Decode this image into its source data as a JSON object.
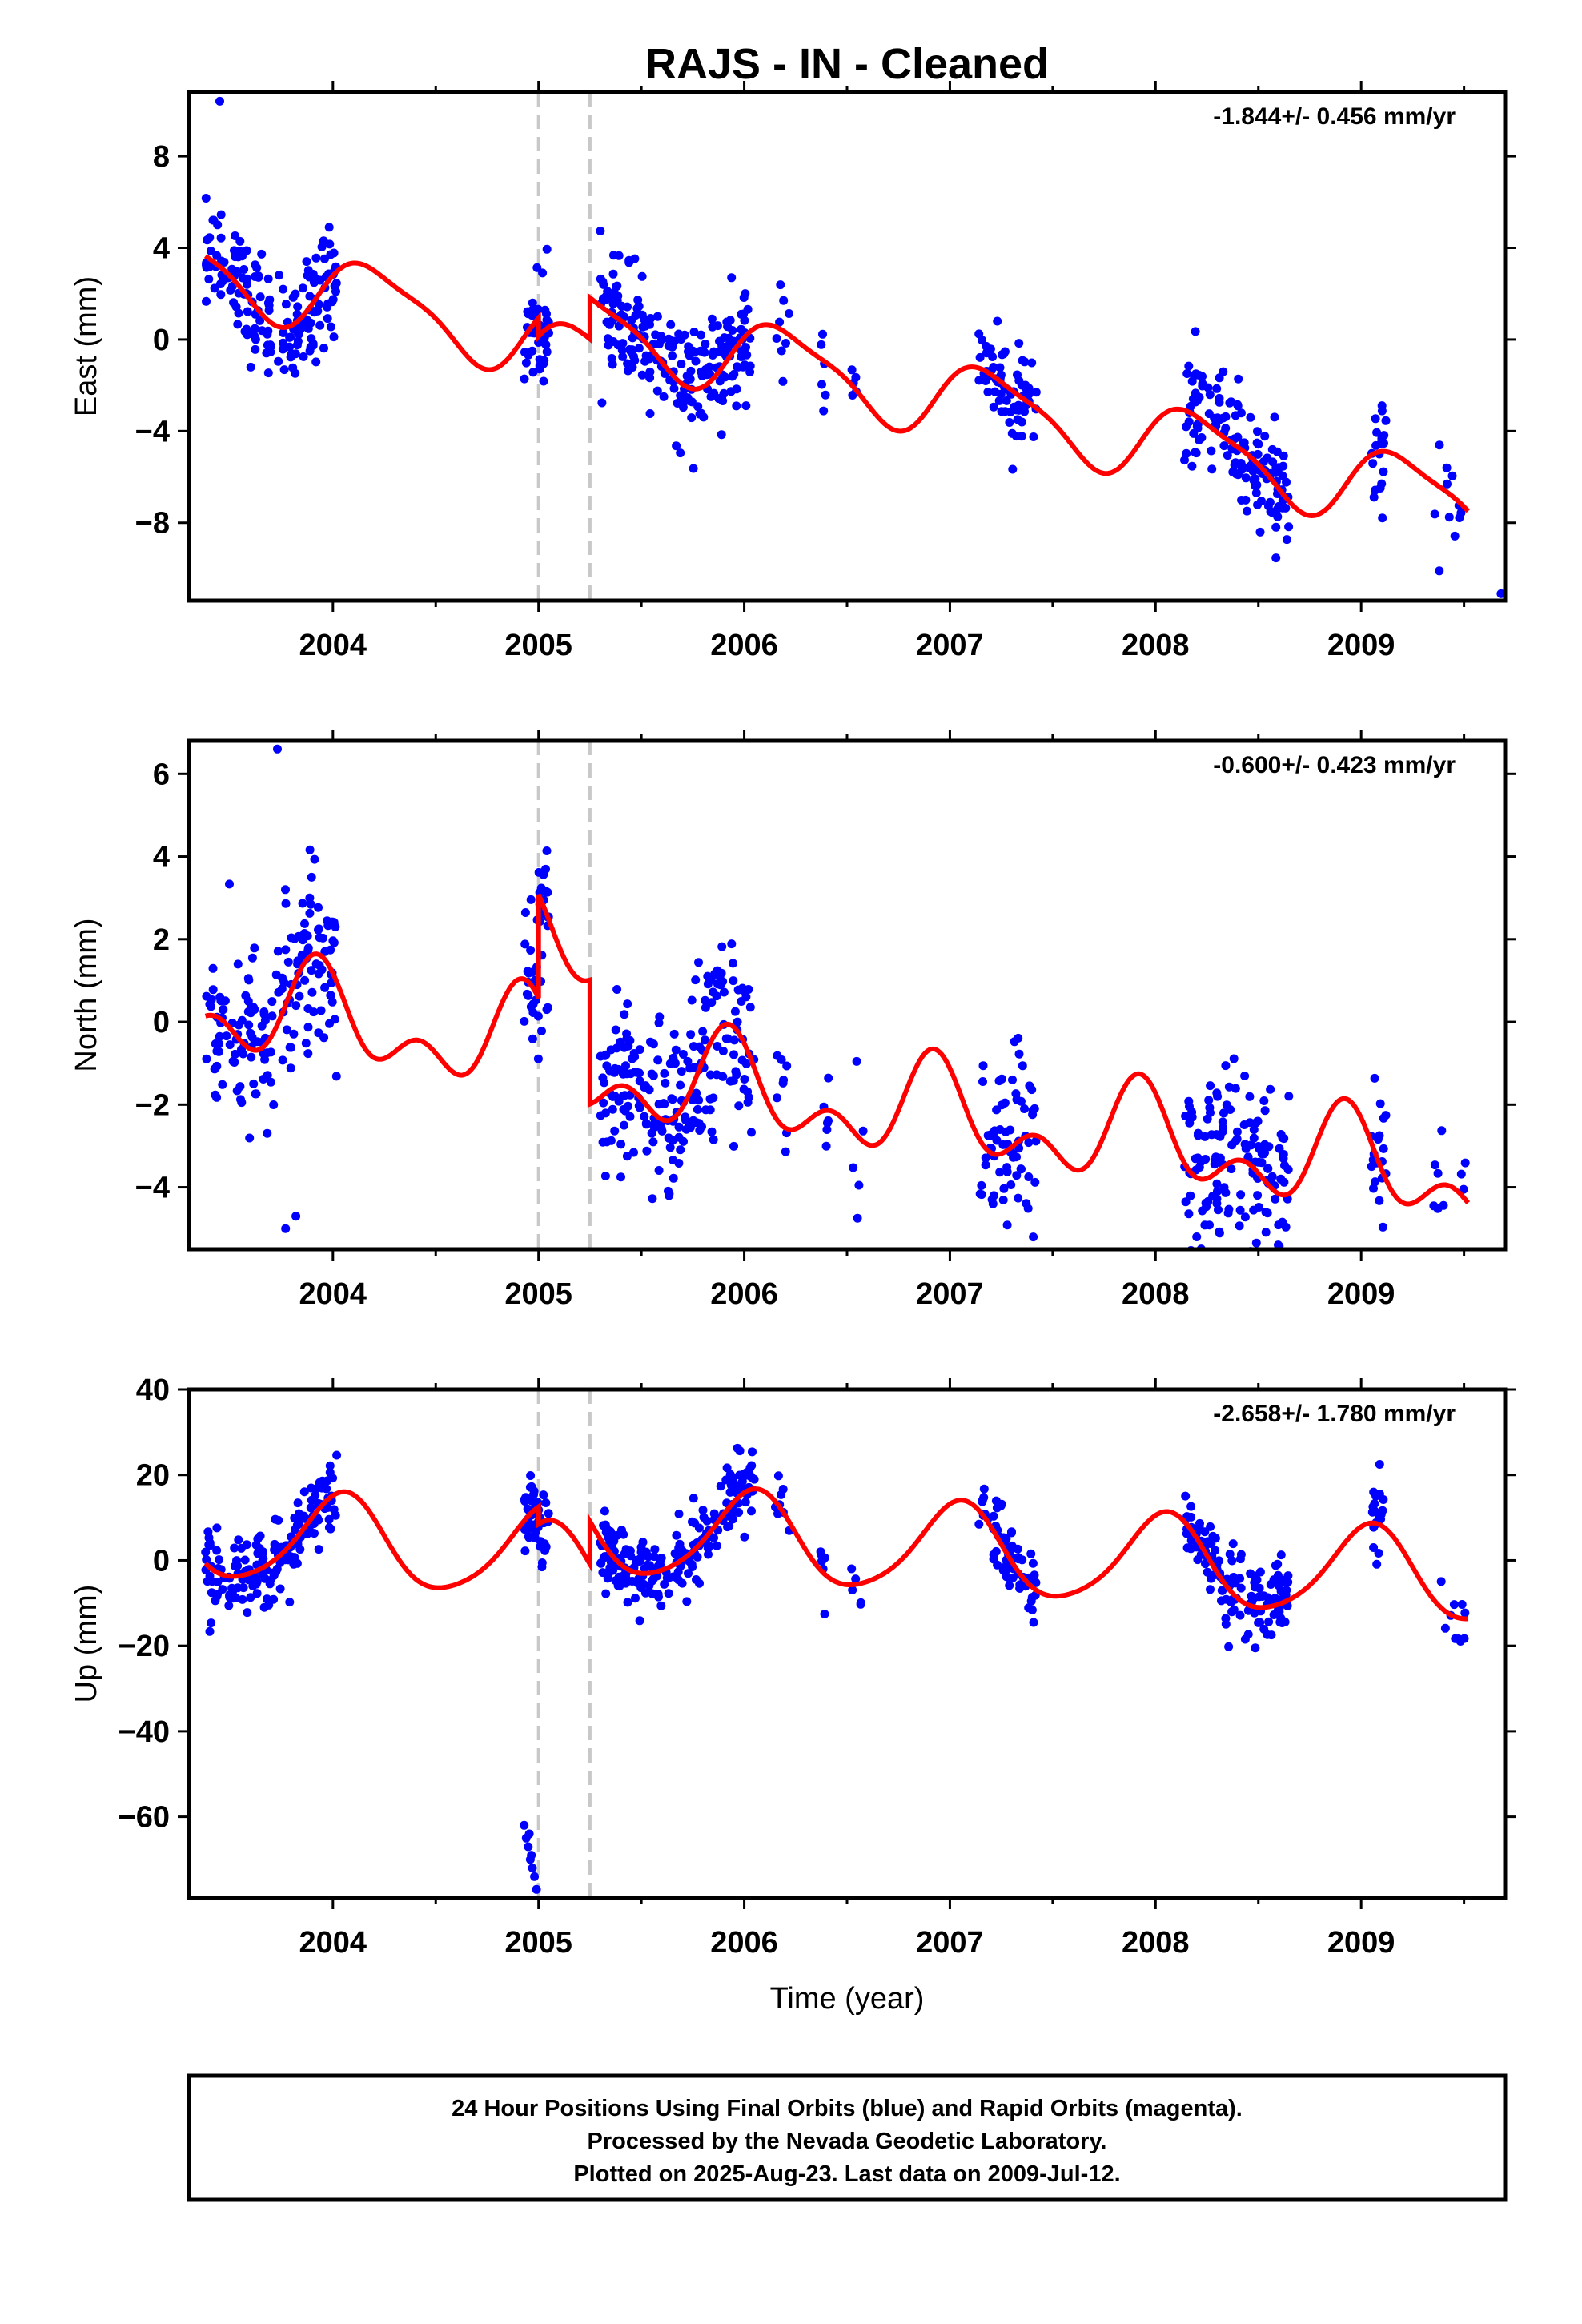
{
  "title": "RAJS  - IN - Cleaned",
  "xlabel": "Time (year)",
  "caption": [
    "24 Hour Positions Using Final Orbits (blue) and Rapid Orbits (magenta).",
    "Processed by the Nevada Geodetic Laboratory.",
    "Plotted on 2025-Aug-23. Last data on 2009-Jul-12."
  ],
  "colors": {
    "data": "#0000ff",
    "model": "#ff0000",
    "breaks": "#c8c8c8",
    "frame": "#000000"
  },
  "chart_data": [
    {
      "type": "scatter",
      "component": "east",
      "ylabel": "East (mm)",
      "rate": "-1.844+/- 0.456 mm/yr",
      "xlim": [
        2003.3,
        2009.7
      ],
      "ylim": [
        -11.4,
        10.8
      ],
      "yticks": [
        -8,
        -4,
        0,
        4,
        8
      ],
      "ytick_labels": [
        "−8",
        "−4",
        "0",
        "4",
        "8"
      ],
      "xticks": [
        2004,
        2005,
        2006,
        2007,
        2008,
        2009
      ],
      "breaks": [
        2005.0,
        2005.25
      ],
      "trend": {
        "rate": -1.844,
        "intercept_2003": 3.8,
        "annual_amp": 1.6,
        "annual_phase": 0.3,
        "semi_amp": 0.4,
        "semi_phase": 1.1
      },
      "data_segments": [
        {
          "start": 2003.38,
          "end": 2004.02,
          "n": 170
        },
        {
          "start": 2004.93,
          "end": 2005.05,
          "n": 45
        },
        {
          "start": 2005.3,
          "end": 2006.05,
          "n": 220
        },
        {
          "start": 2006.15,
          "end": 2006.22,
          "n": 8
        },
        {
          "start": 2006.37,
          "end": 2006.41,
          "n": 6
        },
        {
          "start": 2006.52,
          "end": 2006.58,
          "n": 5
        },
        {
          "start": 2007.14,
          "end": 2007.42,
          "n": 70
        },
        {
          "start": 2008.14,
          "end": 2008.65,
          "n": 150
        },
        {
          "start": 2009.05,
          "end": 2009.12,
          "n": 20
        },
        {
          "start": 2009.35,
          "end": 2009.52,
          "n": 10
        }
      ],
      "noise_sd": 1.2,
      "outliers": [
        [
          2003.45,
          10.4
        ],
        [
          2009.38,
          -10.1
        ],
        [
          2009.68,
          -11.1
        ]
      ]
    },
    {
      "type": "scatter",
      "component": "north",
      "ylabel": "North (mm)",
      "rate": "-0.600+/- 0.423 mm/yr",
      "xlim": [
        2003.3,
        2009.7
      ],
      "ylim": [
        -5.5,
        6.8
      ],
      "yticks": [
        -4,
        -2,
        0,
        2,
        4,
        6
      ],
      "ytick_labels": [
        "−4",
        "−2",
        "0",
        "2",
        "4",
        "6"
      ],
      "xticks": [
        2004,
        2005,
        2006,
        2007,
        2008,
        2009
      ],
      "breaks": [
        2005.0,
        2005.25
      ],
      "trend": {
        "rate": -0.6,
        "intercept_2003": 0.6,
        "annual_amp": 0.9,
        "annual_phase": 2.0,
        "semi_amp": 0.7,
        "semi_phase": 2.6
      },
      "data_segments": [
        {
          "start": 2003.38,
          "end": 2004.02,
          "n": 170
        },
        {
          "start": 2004.93,
          "end": 2005.05,
          "n": 45
        },
        {
          "start": 2005.3,
          "end": 2006.05,
          "n": 220
        },
        {
          "start": 2006.15,
          "end": 2006.22,
          "n": 8
        },
        {
          "start": 2006.37,
          "end": 2006.41,
          "n": 6
        },
        {
          "start": 2006.52,
          "end": 2006.58,
          "n": 5
        },
        {
          "start": 2007.14,
          "end": 2007.42,
          "n": 70
        },
        {
          "start": 2008.14,
          "end": 2008.65,
          "n": 150
        },
        {
          "start": 2009.05,
          "end": 2009.12,
          "n": 20
        },
        {
          "start": 2009.35,
          "end": 2009.52,
          "n": 10
        }
      ],
      "noise_sd": 1.1,
      "outliers": [
        [
          2003.73,
          6.6
        ],
        [
          2003.77,
          -5.0
        ],
        [
          2003.82,
          -4.7
        ],
        [
          2008.2,
          -5.2
        ]
      ]
    },
    {
      "type": "scatter",
      "component": "up",
      "ylabel": "Up (mm)",
      "rate": "-2.658+/- 1.780 mm/yr",
      "xlim": [
        2003.3,
        2009.7
      ],
      "ylim": [
        -79,
        40
      ],
      "yticks": [
        -60,
        -40,
        -20,
        0,
        20,
        40
      ],
      "ytick_labels": [
        "−60",
        "−40",
        "−20",
        "0",
        "20",
        "40"
      ],
      "xticks": [
        2004,
        2005,
        2006,
        2007,
        2008,
        2009
      ],
      "breaks": [
        2005.0,
        2005.25
      ],
      "trend": {
        "rate": -2.658,
        "intercept_2003": 7.0,
        "annual_amp": 10.5,
        "annual_phase": 1.3,
        "semi_amp": 1.5,
        "semi_phase": 0.5
      },
      "data_segments": [
        {
          "start": 2003.38,
          "end": 2004.02,
          "n": 170
        },
        {
          "start": 2004.93,
          "end": 2005.05,
          "n": 45
        },
        {
          "start": 2005.3,
          "end": 2006.05,
          "n": 220
        },
        {
          "start": 2006.15,
          "end": 2006.22,
          "n": 8
        },
        {
          "start": 2006.37,
          "end": 2006.41,
          "n": 6
        },
        {
          "start": 2006.52,
          "end": 2006.58,
          "n": 5
        },
        {
          "start": 2007.14,
          "end": 2007.42,
          "n": 70
        },
        {
          "start": 2008.14,
          "end": 2008.65,
          "n": 150
        },
        {
          "start": 2009.05,
          "end": 2009.12,
          "n": 20
        },
        {
          "start": 2009.35,
          "end": 2009.52,
          "n": 10
        }
      ],
      "noise_sd": 4.5,
      "outliers": [
        [
          2004.93,
          -62
        ],
        [
          2004.94,
          -65
        ],
        [
          2004.95,
          -67
        ],
        [
          2004.96,
          -70
        ],
        [
          2004.97,
          -72
        ],
        [
          2004.98,
          -74
        ],
        [
          2004.99,
          -77
        ],
        [
          2004.955,
          -64
        ],
        [
          2004.965,
          -69
        ]
      ]
    }
  ]
}
